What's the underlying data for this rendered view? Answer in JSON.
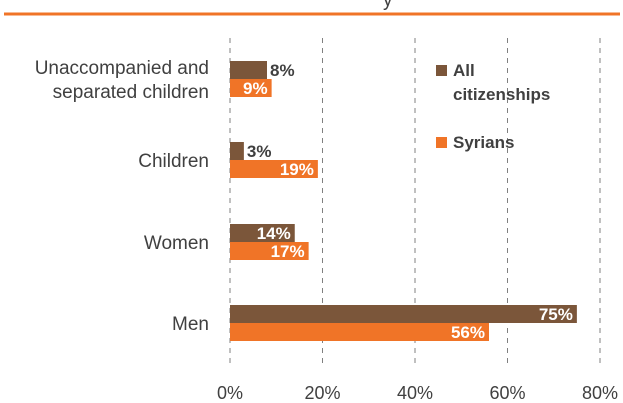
{
  "chart_data": {
    "type": "bar",
    "orientation": "horizontal",
    "categories": [
      "Unaccompanied and separated children",
      "Children",
      "Women",
      "Men"
    ],
    "category_lines": [
      [
        "Unaccompanied and",
        "separated children"
      ],
      [
        "Children"
      ],
      [
        "Women"
      ],
      [
        "Men"
      ]
    ],
    "series": [
      {
        "name": "All citizenships",
        "legend_lines": [
          "All",
          "citizenships"
        ],
        "values": [
          8,
          3,
          14,
          75
        ],
        "labels": [
          "8%",
          "3%",
          "14%",
          "75%"
        ],
        "color": "#7b563a"
      },
      {
        "name": "Syrians",
        "legend_lines": [
          "Syrians"
        ],
        "values": [
          9,
          19,
          17,
          56
        ],
        "labels": [
          "9%",
          "19%",
          "17%",
          "56%"
        ],
        "color": "#f07427"
      }
    ],
    "xlim": [
      0,
      80
    ],
    "xticks": [
      "0%",
      "20%",
      "40%",
      "60%",
      "80%"
    ],
    "grid": "vertical dashed",
    "legend_position": "top-right",
    "header_rule_color": "#f07427",
    "header_text_fragment": "y"
  }
}
